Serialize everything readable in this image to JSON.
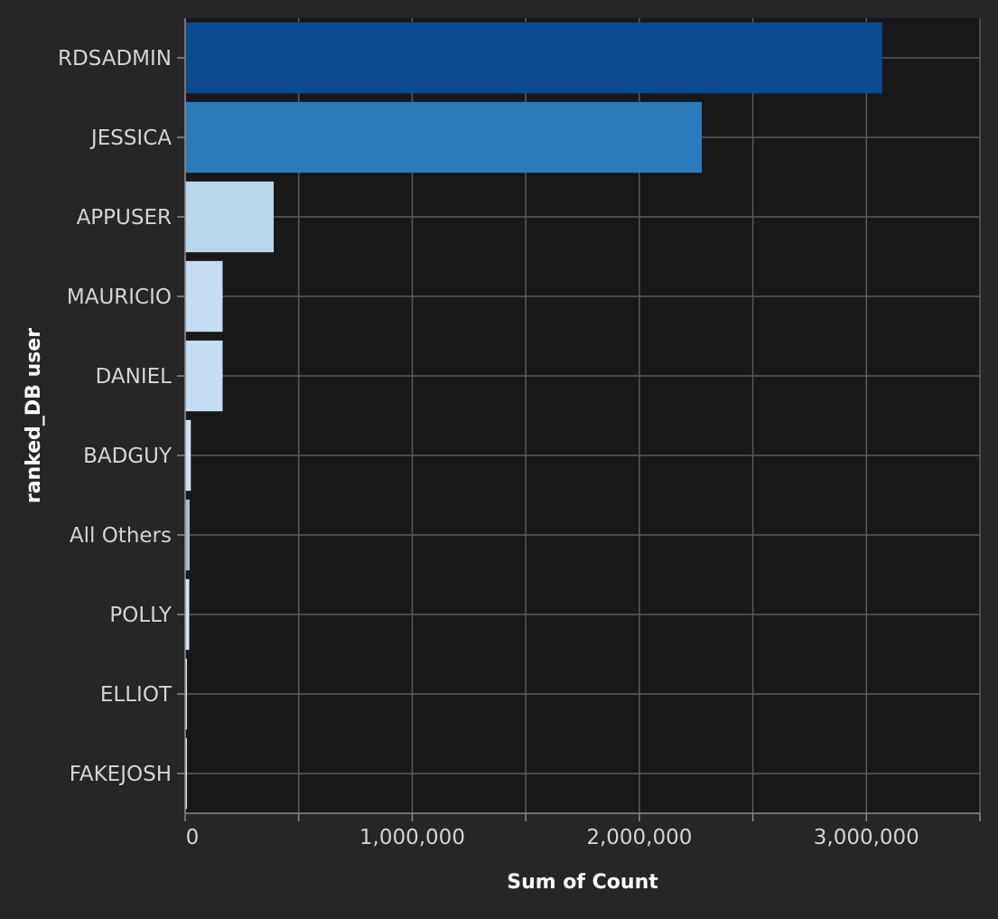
{
  "chart_data": {
    "type": "bar",
    "orientation": "horizontal",
    "categories": [
      "RDSADMIN",
      "JESSICA",
      "APPUSER",
      "MAURICIO",
      "DANIEL",
      "BADGUY",
      "All Others",
      "POLLY",
      "ELLIOT",
      "FAKEJOSH"
    ],
    "values": [
      3070000,
      2275000,
      390000,
      165000,
      165000,
      25000,
      20000,
      18000,
      8000,
      5000
    ],
    "colors": [
      "#0b4a8f",
      "#2b7bba",
      "#bad6ea",
      "#c6dcf0",
      "#c6dcf0",
      "#d0e3f4",
      "#a8bccd",
      "#d2e5f5",
      "#d8e8f6",
      "#dbeaf7"
    ],
    "xlabel": "Sum of Count",
    "ylabel": "ranked_DB user",
    "xlim": [
      0,
      3500000
    ],
    "xticks": [
      0,
      500000,
      1000000,
      1500000,
      2000000,
      2500000,
      3000000,
      3500000
    ],
    "xtick_labels": [
      "0",
      "",
      "1,000,000",
      "",
      "2,000,000",
      "",
      "3,000,000",
      ""
    ],
    "grid": true,
    "background": "#181818",
    "page_background": "#262626"
  }
}
